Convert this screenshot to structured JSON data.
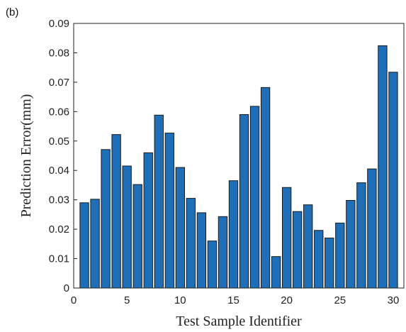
{
  "panel_label": "(b)",
  "chart_data": {
    "type": "bar",
    "title": "",
    "xlabel": "Test Sample Identifier",
    "ylabel": "Prediction Error(mm)",
    "x": [
      1,
      2,
      3,
      4,
      5,
      6,
      7,
      8,
      9,
      10,
      11,
      12,
      13,
      14,
      15,
      16,
      17,
      18,
      19,
      20,
      21,
      22,
      23,
      24,
      25,
      26,
      27,
      28,
      29,
      30
    ],
    "values": [
      0.029,
      0.0302,
      0.0471,
      0.0522,
      0.0415,
      0.0352,
      0.046,
      0.0588,
      0.0527,
      0.041,
      0.0305,
      0.0256,
      0.016,
      0.0243,
      0.0365,
      0.059,
      0.0618,
      0.0682,
      0.0107,
      0.0342,
      0.026,
      0.0283,
      0.0196,
      0.017,
      0.0221,
      0.0298,
      0.0358,
      0.0405,
      0.0824,
      0.0734
    ],
    "xlim": [
      0,
      31
    ],
    "ylim": [
      0,
      0.09
    ],
    "xticks": [
      "0",
      "5",
      "10",
      "15",
      "20",
      "25",
      "30"
    ],
    "yticks": [
      "0",
      "0.01",
      "0.02",
      "0.03",
      "0.04",
      "0.05",
      "0.06",
      "0.07",
      "0.08",
      "0.09"
    ],
    "grid": false,
    "bar_color": "#1f6fb8",
    "bar_edge_color": "#1a1a1a"
  }
}
